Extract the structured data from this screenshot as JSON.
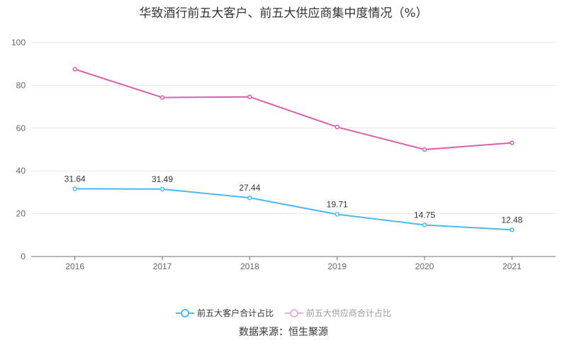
{
  "chart_data": {
    "type": "line",
    "title": "华致酒行前五大客户、前五大供应商集中度情况（%）",
    "categories": [
      "2016",
      "2017",
      "2018",
      "2019",
      "2020",
      "2021"
    ],
    "ylim": [
      0,
      100
    ],
    "yticks": [
      0,
      20,
      40,
      60,
      80,
      100
    ],
    "grid": true,
    "legend_position": "bottom",
    "series": [
      {
        "name": "前五大客户合计占比",
        "color": "#4cb8f5",
        "values": [
          31.64,
          31.49,
          27.44,
          19.71,
          14.75,
          12.48
        ],
        "labels": [
          "31.64",
          "31.49",
          "27.44",
          "19.71",
          "14.75",
          "12.48"
        ]
      },
      {
        "name": "前五大供应商合计占比",
        "color": "#d95fa8",
        "values": [
          87.5,
          74.3,
          74.6,
          60.5,
          50.0,
          53.1
        ]
      }
    ]
  },
  "source": "数据来源：恒生聚源"
}
